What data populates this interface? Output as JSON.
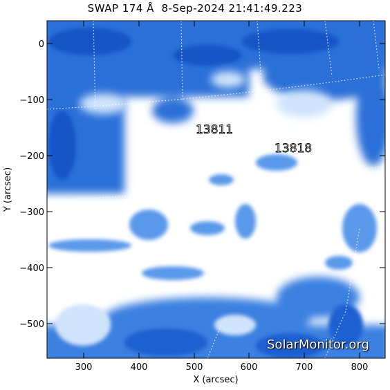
{
  "figure": {
    "title": "SWAP 174 Å  8-Sep-2024 21:41:49.223",
    "x_axis_label": "X (arcsec)",
    "y_axis_label": "Y (arcsec)",
    "x_ticks": [
      "300",
      "400",
      "500",
      "600",
      "700",
      "800"
    ],
    "y_ticks": [
      "0",
      "−100",
      "−200",
      "−300",
      "−400",
      "−500"
    ],
    "x_range": [
      235,
      840
    ],
    "y_range": [
      -560,
      40
    ],
    "regions": [
      {
        "label": "13811",
        "x": 535,
        "y": -155
      },
      {
        "label": "13818",
        "x": 665,
        "y": -190
      }
    ],
    "watermark": "SolarMonitor.org",
    "colors": {
      "deep_blue": "#1a5fd0",
      "mid_blue": "#4a8ee8",
      "pale_blue": "#cfe3fb",
      "background": "#ffffff"
    }
  }
}
